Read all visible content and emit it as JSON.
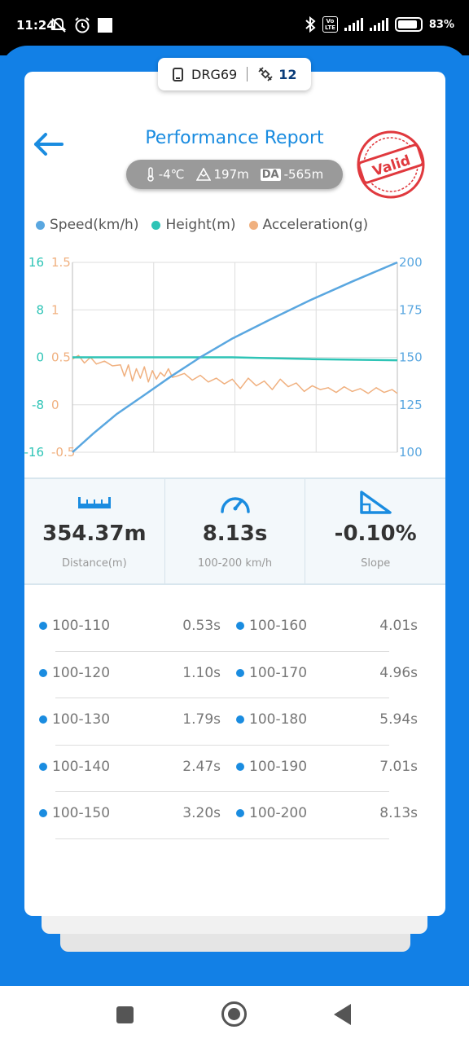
{
  "status_bar": {
    "time": "11:24",
    "battery": "83"
  },
  "device": {
    "name": "DRG69",
    "satellites": "12"
  },
  "header": {
    "title": "Performance Report",
    "temperature": "-4℃",
    "altitude": "197m",
    "da_badge": "DA",
    "density_altitude": "-565m",
    "stamp_text": "Valid"
  },
  "legend": [
    {
      "label": "Speed(km/h)",
      "color": "#5aa7e0"
    },
    {
      "label": "Height(m)",
      "color": "#2ec4b6"
    },
    {
      "label": "Acceleration(g)",
      "color": "#f0b07f"
    }
  ],
  "chart_data": {
    "type": "line",
    "x_range": [
      0,
      8.13
    ],
    "y_right": {
      "ticks": [
        "200",
        "175",
        "150",
        "125",
        "100"
      ],
      "range": [
        100,
        200
      ],
      "color": "#5aa7e0"
    },
    "y_left_height": {
      "ticks": [
        "16",
        "8",
        "0",
        "-8",
        "-16"
      ],
      "range": [
        -16,
        16
      ],
      "color": "#2ec4b6"
    },
    "y_left_accel": {
      "ticks": [
        "1.5",
        "1",
        "0.5",
        "0",
        "-0.5"
      ],
      "range": [
        -0.5,
        1.5
      ],
      "color": "#f0b07f"
    },
    "series": [
      {
        "axis": "speed",
        "x": [
          0,
          0.53,
          1.1,
          1.79,
          2.47,
          3.2,
          4.01,
          4.96,
          5.94,
          7.01,
          8.13
        ],
        "y": [
          100,
          110,
          120,
          130,
          140,
          150,
          160,
          170,
          180,
          190,
          200
        ]
      },
      {
        "axis": "height",
        "x": [
          0,
          2,
          4,
          6,
          8.13
        ],
        "y": [
          0,
          0,
          0,
          -0.3,
          -0.5
        ]
      },
      {
        "axis": "accel",
        "x": [
          0,
          0.15,
          0.3,
          0.45,
          0.6,
          0.8,
          1.0,
          1.2,
          1.3,
          1.4,
          1.5,
          1.6,
          1.7,
          1.8,
          1.9,
          2.0,
          2.1,
          2.2,
          2.3,
          2.4,
          2.5,
          2.6,
          2.8,
          3.0,
          3.2,
          3.4,
          3.6,
          3.8,
          4.0,
          4.2,
          4.4,
          4.6,
          4.8,
          5.0,
          5.2,
          5.4,
          5.6,
          5.8,
          6.0,
          6.2,
          6.4,
          6.6,
          6.8,
          7.0,
          7.2,
          7.4,
          7.6,
          7.8,
          8.0,
          8.13
        ],
        "y": [
          0.48,
          0.52,
          0.44,
          0.5,
          0.43,
          0.46,
          0.41,
          0.42,
          0.3,
          0.42,
          0.25,
          0.38,
          0.28,
          0.4,
          0.24,
          0.36,
          0.27,
          0.34,
          0.3,
          0.38,
          0.29,
          0.3,
          0.33,
          0.26,
          0.31,
          0.24,
          0.28,
          0.22,
          0.27,
          0.17,
          0.28,
          0.2,
          0.25,
          0.16,
          0.27,
          0.19,
          0.23,
          0.14,
          0.2,
          0.16,
          0.18,
          0.13,
          0.19,
          0.14,
          0.17,
          0.12,
          0.18,
          0.13,
          0.16,
          0.12
        ]
      }
    ]
  },
  "stats": [
    {
      "value": "354.37m",
      "label": "Distance(m)",
      "icon": "ruler-icon"
    },
    {
      "value": "8.13s",
      "label": "100-200 km/h",
      "icon": "speedometer-icon"
    },
    {
      "value": "-0.10%",
      "label": "Slope",
      "icon": "slope-icon"
    }
  ],
  "splits": [
    {
      "left": {
        "range": "100-110",
        "time": "0.53s"
      },
      "right": {
        "range": "100-160",
        "time": "4.01s"
      }
    },
    {
      "left": {
        "range": "100-120",
        "time": "1.10s"
      },
      "right": {
        "range": "100-170",
        "time": "4.96s"
      }
    },
    {
      "left": {
        "range": "100-130",
        "time": "1.79s"
      },
      "right": {
        "range": "100-180",
        "time": "5.94s"
      }
    },
    {
      "left": {
        "range": "100-140",
        "time": "2.47s"
      },
      "right": {
        "range": "100-190",
        "time": "7.01s"
      }
    },
    {
      "left": {
        "range": "100-150",
        "time": "3.20s"
      },
      "right": {
        "range": "100-200",
        "time": "8.13s"
      }
    }
  ]
}
